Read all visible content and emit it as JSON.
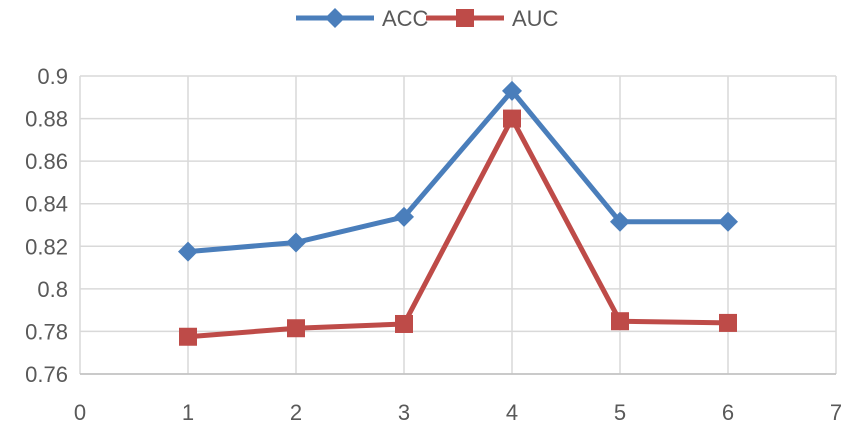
{
  "chart_data": {
    "type": "line",
    "title": "",
    "xlabel": "",
    "ylabel": "",
    "xlim": [
      0,
      7
    ],
    "ylim": [
      0.76,
      0.9
    ],
    "x_ticks": [
      "0",
      "1",
      "2",
      "3",
      "4",
      "5",
      "6",
      "7"
    ],
    "y_ticks": [
      "0.76",
      "0.78",
      "0.8",
      "0.82",
      "0.84",
      "0.86",
      "0.88",
      "0.9"
    ],
    "grid": true,
    "legend_position": "top-center",
    "x": [
      1,
      2,
      3,
      4,
      5,
      6
    ],
    "series": [
      {
        "name": "ACC",
        "marker": "diamond",
        "color": "#4a7ebb",
        "values": [
          0.8175,
          0.8218,
          0.8338,
          0.893,
          0.8315,
          0.8315
        ]
      },
      {
        "name": "AUC",
        "marker": "square",
        "color": "#be4b48",
        "values": [
          0.7775,
          0.7815,
          0.7835,
          0.88,
          0.7848,
          0.784
        ]
      }
    ]
  }
}
